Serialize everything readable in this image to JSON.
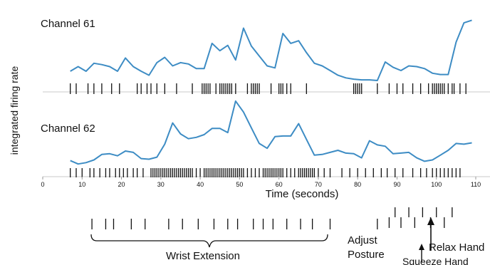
{
  "figure": {
    "ylabel": "integrated firing rate",
    "xlabel": "Time (seconds)",
    "line_color": "#3d8cc4",
    "spike_color": "#111111"
  },
  "chart_data": [
    {
      "type": "line",
      "title": "Channel 61",
      "xlim": [
        0,
        110
      ],
      "ylim": [
        0,
        100
      ],
      "x": [
        7,
        9,
        11,
        13,
        15,
        17,
        19,
        21,
        23,
        25,
        27,
        29,
        31,
        33,
        35,
        37,
        39,
        41,
        43,
        45,
        47,
        49,
        51,
        53,
        55,
        57,
        59,
        61,
        63,
        65,
        67,
        69,
        71,
        73,
        75,
        77,
        79,
        81,
        83,
        85,
        87,
        89,
        91,
        93,
        95,
        97,
        99,
        101,
        103,
        105,
        107,
        109
      ],
      "values": [
        14,
        21,
        14,
        26,
        24,
        21,
        14,
        34,
        21,
        14,
        8,
        27,
        35,
        22,
        27,
        25,
        18,
        18,
        56,
        45,
        53,
        31,
        79,
        52,
        37,
        22,
        19,
        71,
        56,
        60,
        42,
        26,
        22,
        15,
        8,
        4,
        2,
        1,
        1,
        0,
        28,
        20,
        15,
        22,
        21,
        18,
        11,
        9,
        9,
        58,
        87,
        91
      ]
    },
    {
      "type": "line",
      "title": "Channel 62",
      "xlim": [
        0,
        110
      ],
      "ylim": [
        0,
        100
      ],
      "x": [
        7,
        9,
        11,
        13,
        15,
        17,
        19,
        21,
        23,
        25,
        27,
        29,
        31,
        33,
        35,
        37,
        39,
        41,
        43,
        45,
        47,
        49,
        51,
        53,
        55,
        57,
        59,
        61,
        63,
        65,
        67,
        69,
        71,
        73,
        75,
        77,
        79,
        81,
        83,
        85,
        87,
        89,
        91,
        93,
        95,
        97,
        99,
        101,
        103,
        105,
        107,
        109
      ],
      "values": [
        11,
        6,
        8,
        12,
        20,
        21,
        18,
        25,
        23,
        14,
        13,
        16,
        35,
        66,
        50,
        43,
        45,
        49,
        58,
        58,
        52,
        98,
        82,
        59,
        36,
        29,
        46,
        47,
        47,
        65,
        42,
        19,
        20,
        23,
        26,
        22,
        21,
        15,
        40,
        34,
        32,
        21,
        22,
        23,
        15,
        10,
        12,
        19,
        26,
        36,
        35,
        37
      ]
    }
  ],
  "axis": {
    "ticks": [
      0,
      10,
      20,
      30,
      40,
      50,
      60,
      70,
      80,
      90,
      100,
      110
    ],
    "tick_labels": [
      "0",
      "10",
      "20",
      "30",
      "40",
      "50",
      "60",
      "70",
      "80",
      "90",
      "100",
      "110"
    ]
  },
  "spikes": {
    "channel61": [
      7,
      8.5,
      11.5,
      13,
      15,
      17.5,
      19.5,
      24,
      25,
      26.5,
      27.5,
      29,
      31,
      34,
      38,
      40.5,
      41,
      41.5,
      42,
      42.5,
      44,
      45,
      45.5,
      46,
      46.5,
      47,
      47.5,
      48,
      49,
      52,
      53,
      53.5,
      54,
      54.5,
      55,
      58,
      60,
      60.5,
      61,
      62,
      63,
      67,
      79,
      79.5,
      80,
      80.5,
      81,
      85,
      88,
      90,
      91.5,
      94,
      96,
      98,
      99,
      99.5,
      100,
      100.5,
      101,
      101.5,
      102,
      103,
      104,
      104.5,
      106,
      107.5
    ],
    "channel62": [
      7,
      8.5,
      10,
      12,
      13,
      14.5,
      16,
      17,
      18.5,
      19.5,
      20.5,
      21.5,
      23,
      24,
      25.5,
      27.5,
      28,
      28.5,
      29,
      29.5,
      30,
      30.5,
      31,
      31.5,
      32,
      32.5,
      33,
      33.5,
      34,
      34.5,
      35,
      35.5,
      36,
      36.5,
      37,
      37.5,
      38,
      39,
      40,
      41,
      41.5,
      42,
      42.5,
      43,
      43.5,
      44,
      44.5,
      45,
      45.5,
      46,
      46.5,
      47,
      47.5,
      48,
      48.5,
      49,
      49.5,
      50,
      50.5,
      51,
      52,
      53,
      54,
      55,
      56,
      56.5,
      57,
      57.5,
      58,
      58.5,
      59,
      59.5,
      60,
      60.5,
      61,
      62,
      63,
      64,
      65,
      65.5,
      66,
      66.5,
      67,
      67.5,
      68,
      68.5,
      69,
      70,
      71.5,
      73,
      76,
      78,
      80,
      82,
      84,
      86,
      87.5,
      89.5,
      91.5,
      94,
      96,
      97.5,
      99,
      100,
      101,
      102,
      103,
      104,
      105,
      106
    ]
  },
  "events": {
    "wrist_extension": [
      12.5,
      16,
      18,
      22.5,
      26,
      32,
      35.5,
      39.5,
      43.5,
      47,
      49.5,
      53.5,
      56,
      58.5,
      62,
      65.5,
      68.5
    ],
    "adjust_posture": [
      73
    ],
    "squeeze_hand": [
      85
    ],
    "relax_hand_row1": [
      88,
      89.5,
      91,
      93,
      94.5,
      96.5,
      98.5,
      100,
      102,
      104
    ]
  },
  "annotations": {
    "wrist_extension": "Wrist Extension",
    "adjust_line1": "Adjust",
    "adjust_line2": "Posture",
    "relax_hand": "Relax Hand",
    "squeeze_hand": "Squeeze Hand"
  }
}
